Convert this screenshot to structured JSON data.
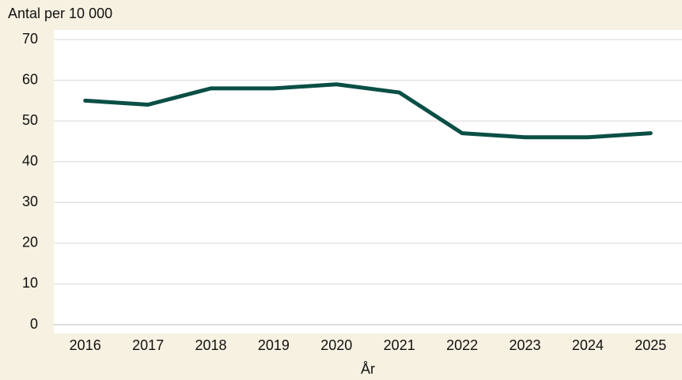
{
  "chart_data": {
    "type": "line",
    "y_label": "Antal per 10 000",
    "x_label": "År",
    "categories": [
      "2016",
      "2017",
      "2018",
      "2019",
      "2020",
      "2021",
      "2022",
      "2023",
      "2024",
      "2025"
    ],
    "values": [
      55,
      54,
      58,
      58,
      59,
      57,
      47,
      46,
      46,
      47
    ],
    "color": "#0a4f45",
    "ylim": [
      0,
      70
    ],
    "yticks": [
      0,
      10,
      20,
      30,
      40,
      50,
      60,
      70
    ],
    "grid": true
  }
}
